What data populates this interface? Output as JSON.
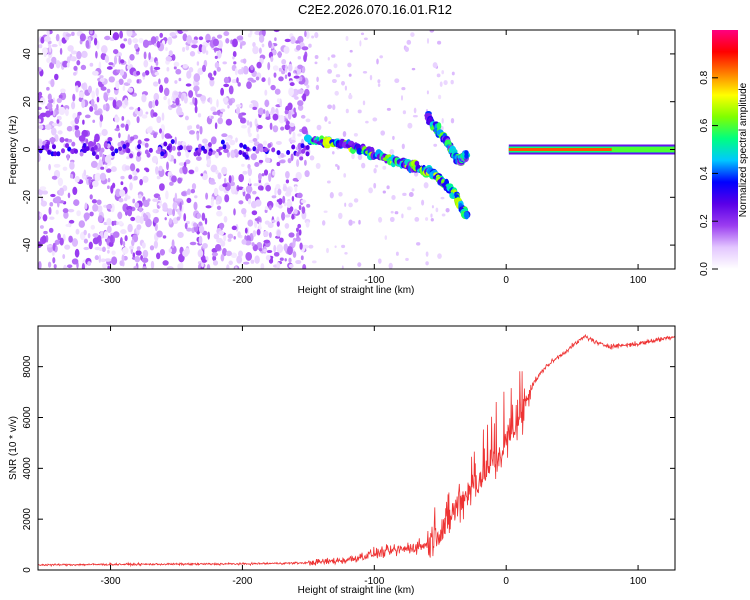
{
  "title": "C2E2.2026.070.16.01.R12",
  "chart_data": [
    {
      "type": "heatmap",
      "title": "",
      "xlabel": "Height of straight line (km)",
      "ylabel": "Frequency (Hz)",
      "xlim": [
        -355,
        128
      ],
      "ylim": [
        -50,
        50
      ],
      "x_ticks": [
        -300,
        -200,
        -100,
        0,
        100
      ],
      "y_ticks": [
        -40,
        -20,
        0,
        20,
        40
      ],
      "colorbar": {
        "label": "Normalized spectral amplitude",
        "range": [
          0.0,
          1.0
        ],
        "ticks": [
          "0.0",
          "0.2",
          "0.4",
          "0.6",
          "0.8"
        ],
        "colors": [
          "#ffffff",
          "#e3c6ff",
          "#9b3df0",
          "#5a00e8",
          "#0000ff",
          "#00c8ff",
          "#00ff80",
          "#80ff00",
          "#ffff00",
          "#ff8000",
          "#ff0000",
          "#ff0080"
        ]
      },
      "features": [
        {
          "name": "noise floor",
          "x_range": [
            -355,
            -150
          ],
          "f_range": [
            -50,
            50
          ],
          "amplitude": 0.1
        },
        {
          "name": "main descending trace",
          "points": [
            [
              -150,
              4
            ],
            [
              -120,
              2
            ],
            [
              -90,
              -4
            ],
            [
              -70,
              -7
            ],
            [
              -55,
              -10
            ],
            [
              -40,
              -18
            ],
            [
              -30,
              -28
            ]
          ],
          "amplitude": 0.4
        },
        {
          "name": "secondary trace",
          "points": [
            [
              -60,
              14
            ],
            [
              -45,
              3
            ],
            [
              -35,
              -5
            ],
            [
              -30,
              -2
            ]
          ],
          "amplitude": 0.35
        },
        {
          "name": "carrier line",
          "x_range": [
            0,
            128
          ],
          "f": 0,
          "amplitude": 0.85
        }
      ]
    },
    {
      "type": "line",
      "title": "",
      "xlabel": "Height of straight line (km)",
      "ylabel": "SNR (10 * v/v)",
      "xlim": [
        -355,
        128
      ],
      "ylim": [
        0,
        9600
      ],
      "x_ticks": [
        -300,
        -200,
        -100,
        0,
        100
      ],
      "y_ticks": [
        0,
        2000,
        4000,
        6000,
        8000
      ],
      "series": [
        {
          "name": "SNR",
          "color": "#ee3333",
          "x": [
            -355,
            -300,
            -250,
            -200,
            -150,
            -120,
            -100,
            -80,
            -60,
            -50,
            -40,
            -30,
            -20,
            -10,
            0,
            10,
            20,
            30,
            40,
            50,
            60,
            70,
            80,
            100,
            128
          ],
          "y": [
            200,
            220,
            230,
            240,
            280,
            400,
            650,
            800,
            1000,
            1500,
            2300,
            3000,
            3600,
            4200,
            5000,
            6000,
            7300,
            8000,
            8400,
            8800,
            9200,
            8900,
            8800,
            8900,
            9200
          ]
        }
      ]
    }
  ]
}
